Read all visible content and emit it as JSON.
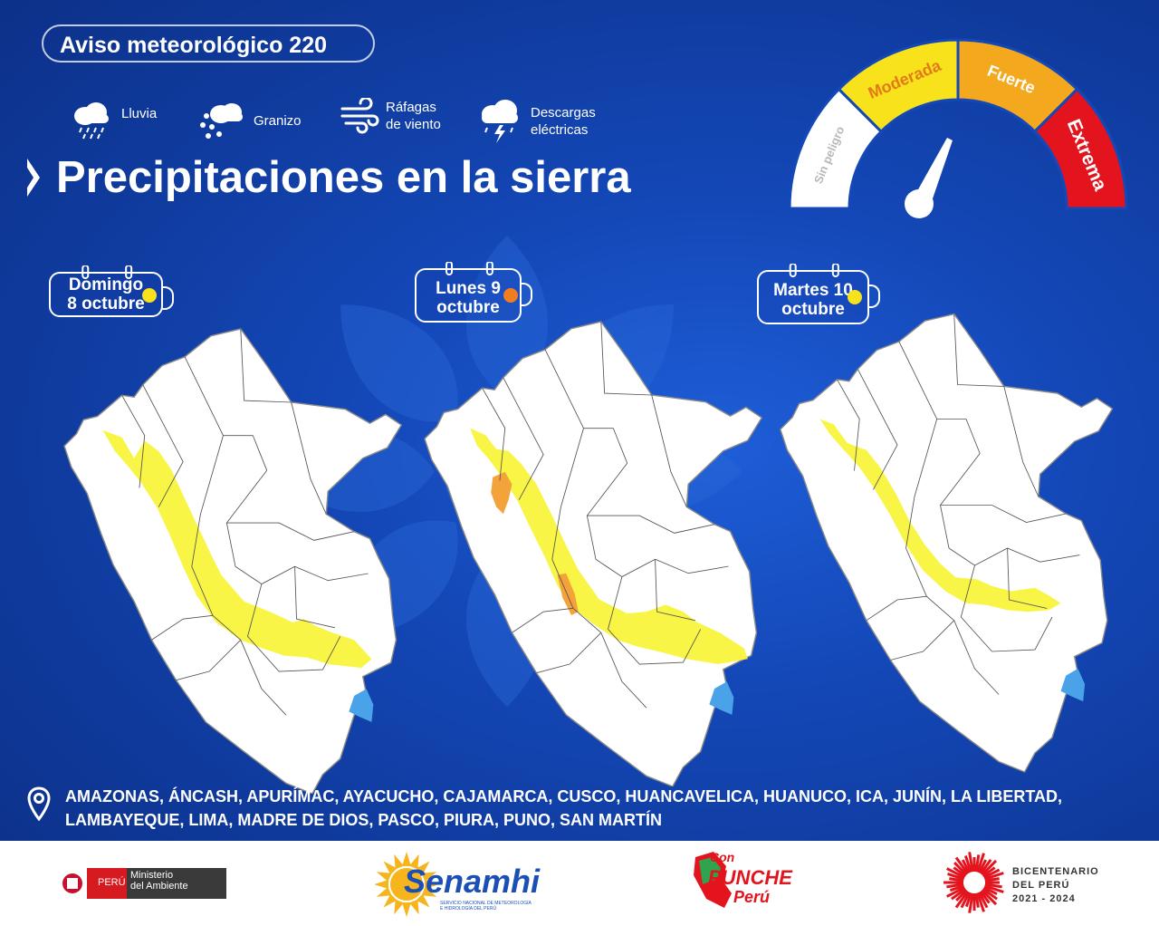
{
  "bulletin": {
    "title": "Aviso meteorológico 220"
  },
  "legend": [
    {
      "icon": "rain-cloud-icon",
      "label": "Lluvia"
    },
    {
      "icon": "hail-cloud-icon",
      "label": "Granizo"
    },
    {
      "icon": "wind-gust-icon",
      "label": "Ráfagas de viento"
    },
    {
      "icon": "lightning-cloud-icon",
      "label": "Descargas eléctricas"
    }
  ],
  "headline": "Precipitaciones en la sierra",
  "gauge": {
    "levels": [
      "Sin peligro",
      "Moderada",
      "Fuerte",
      "Extrema"
    ],
    "colors": [
      "#ffffff",
      "#f7e21c",
      "#f4a81d",
      "#e3141e"
    ]
  },
  "days": [
    {
      "label_line1": "Domingo",
      "label_line2": "8 octubre",
      "level_color": "#f7e21c"
    },
    {
      "label_line1": "Lunes 9",
      "label_line2": "octubre",
      "level_color": "#f07e1f"
    },
    {
      "label_line1": "Martes 10",
      "label_line2": "octubre",
      "level_color": "#f7e21c"
    }
  ],
  "regions_text": "AMAZONAS, ÁNCASH, APURÍMAC, AYACUCHO, CAJAMARCA, CUSCO, HUANCAVELICA, HUANUCO, ICA, JUNÍN, LA LIBERTAD, LAMBAYEQUE, LIMA, MADRE DE DIOS, PASCO, PIURA, PUNO, SAN MARTÍN",
  "footer": {
    "peru": "PERÚ",
    "ministry_line1": "Ministerio",
    "ministry_line2": "del Ambiente",
    "senamhi": "Senamhi",
    "senamhi_sub1": "SERVICIO NACIONAL DE METEOROLOGÍA",
    "senamhi_sub2": "E HIDROLOGÍA DEL PERÚ",
    "punche_1": "Con",
    "punche_2": "PUNCHE",
    "punche_3": "Perú",
    "bicent_1": "BICENTENARIO",
    "bicent_2": "DEL PERÚ",
    "bicent_3": "2021 - 2024"
  }
}
